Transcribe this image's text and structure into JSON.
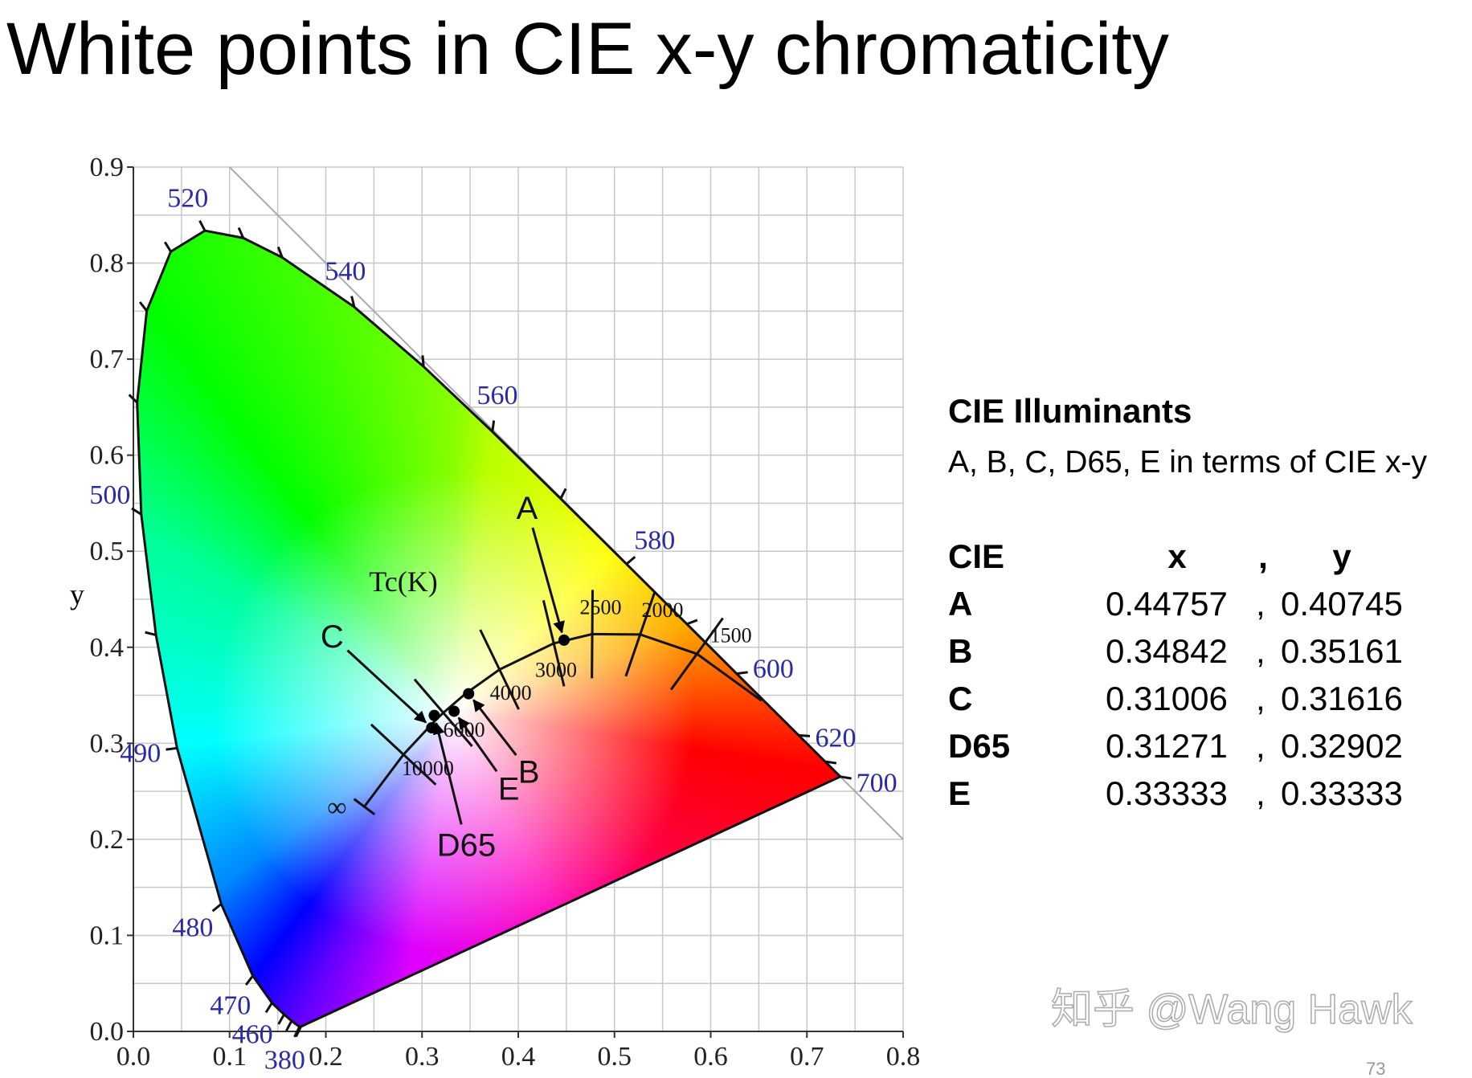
{
  "slide": {
    "title": "White points in CIE x-y chromaticity",
    "watermark": "知乎 @Wang Hawk",
    "page_number": "73"
  },
  "chart_data": {
    "type": "chromaticity",
    "ylabel": "y",
    "xlim": [
      0,
      0.8
    ],
    "ylim": [
      0,
      0.9
    ],
    "xticks": [
      {
        "value": 0,
        "label": "0.0"
      },
      0.1,
      0.2,
      0.3,
      0.4,
      0.5,
      0.6,
      0.7,
      0.8
    ],
    "yticks": [
      {
        "value": 0,
        "label": "0.0"
      },
      0.1,
      0.2,
      0.3,
      0.4,
      0.5,
      0.6,
      0.7,
      0.8,
      0.9
    ],
    "grid": true,
    "spectral_locus": {
      "wavelengths": [
        380,
        null,
        null,
        null,
        460,
        470,
        480,
        490,
        null,
        500,
        null,
        null,
        null,
        520,
        null,
        null,
        540,
        null,
        560,
        null,
        580,
        null,
        600,
        620,
        null,
        700
      ],
      "x": [
        0.1741,
        0.1726,
        0.1644,
        0.1566,
        0.144,
        0.1241,
        0.0913,
        0.0454,
        0.0235,
        0.0082,
        0.0039,
        0.0139,
        0.0389,
        0.0743,
        0.1142,
        0.1547,
        0.2296,
        0.3016,
        0.3731,
        0.4441,
        0.5125,
        0.5752,
        0.627,
        0.6915,
        0.719,
        0.7347
      ],
      "y": [
        0.005,
        0.0048,
        0.0109,
        0.0177,
        0.0297,
        0.0578,
        0.1327,
        0.295,
        0.4127,
        0.5384,
        0.6548,
        0.7502,
        0.812,
        0.8338,
        0.8262,
        0.8059,
        0.7543,
        0.6923,
        0.6245,
        0.5547,
        0.4866,
        0.4242,
        0.3725,
        0.3083,
        0.2809,
        0.2653
      ]
    },
    "planckian_locus": {
      "label": "Tc(K)",
      "temperatures": [
        "∞",
        "10000",
        null,
        "6000",
        null,
        "4000",
        "3000",
        "2500",
        "2000",
        "1500",
        null
      ],
      "x": [
        0.24,
        0.2807,
        0.3135,
        0.3221,
        0.3451,
        0.3805,
        0.4369,
        0.4769,
        0.5267,
        0.5857,
        0.6528
      ],
      "y": [
        0.234,
        0.2883,
        0.3236,
        0.3318,
        0.3516,
        0.3768,
        0.4041,
        0.4137,
        0.4133,
        0.3931,
        0.3444
      ]
    }
  },
  "panel": {
    "heading": "CIE Illuminants",
    "subheading": "A, B, C, D65, E in terms of CIE x-y",
    "separator": ",",
    "table": {
      "header": [
        "CIE",
        "x",
        "y"
      ],
      "rows": [
        [
          "A",
          0.44757,
          0.40745
        ],
        [
          "B",
          0.34842,
          0.35161
        ],
        [
          "C",
          0.31006,
          0.31616
        ],
        [
          "D65",
          0.31271,
          0.32902
        ],
        [
          "E",
          0.33333,
          0.33333
        ]
      ]
    }
  }
}
